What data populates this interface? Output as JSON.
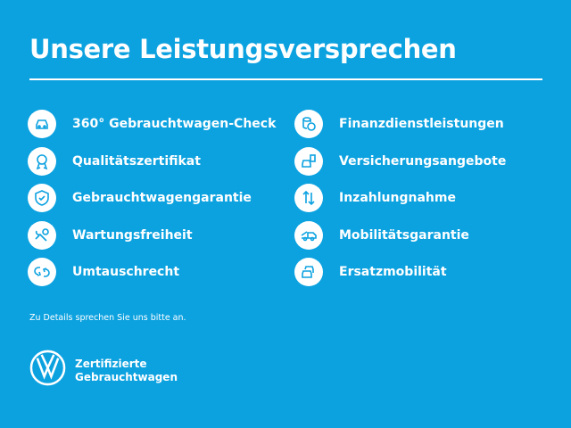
{
  "title": "Unsere Leistungsversprechen",
  "colors": {
    "background": "#0ca2e0",
    "foreground": "#ffffff"
  },
  "left_items": [
    {
      "label": "360° Gebrauchtwagen-Check",
      "icon": "car-check-icon"
    },
    {
      "label": "Qualitätszertifikat",
      "icon": "award-icon"
    },
    {
      "label": "Gebrauchtwagengarantie",
      "icon": "shield-check-icon"
    },
    {
      "label": "Wartungsfreiheit",
      "icon": "wrench-icon"
    },
    {
      "label": "Umtauschrecht",
      "icon": "exchange-icon"
    }
  ],
  "right_items": [
    {
      "label": "Finanzdienstleistungen",
      "icon": "coins-icon"
    },
    {
      "label": "Versicherungsangebote",
      "icon": "car-insurance-icon"
    },
    {
      "label": "Inzahlungnahme",
      "icon": "arrows-up-down-icon"
    },
    {
      "label": "Mobilitätsgarantie",
      "icon": "tow-truck-icon"
    },
    {
      "label": "Ersatzmobilität",
      "icon": "cars-icon"
    }
  ],
  "note": "Zu Details sprechen Sie uns bitte an.",
  "brand": {
    "line1": "Zertifizierte",
    "line2": "Gebrauchtwagen",
    "logo": "VW"
  }
}
